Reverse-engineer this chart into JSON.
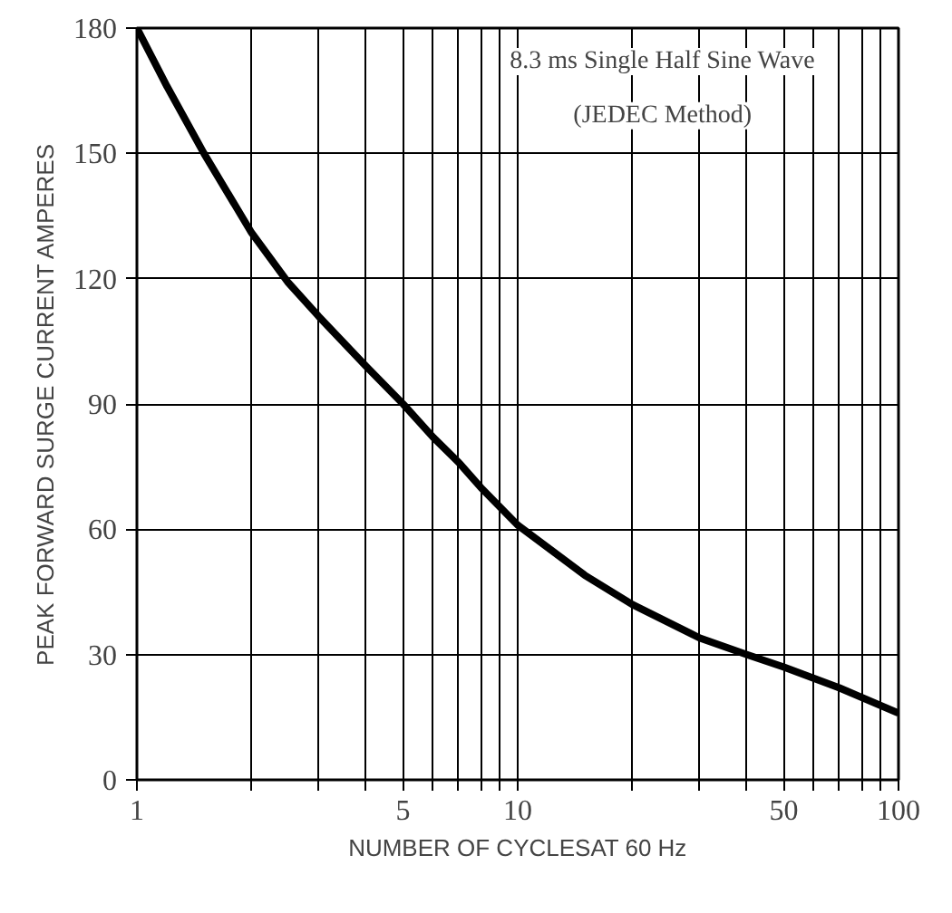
{
  "chart_data": {
    "type": "line",
    "xlabel": "NUMBER OF CYCLESAT 60 Hz",
    "ylabel": "PEAK FORWARD SURGE CURRENT AMPERES",
    "annotations": [
      "8.3 ms Single Half Sine Wave",
      "(JEDEC Method)"
    ],
    "log": "x",
    "grid": true,
    "marker": "none",
    "line_style": "solid",
    "xlim": [
      1,
      100
    ],
    "ylim": [
      0,
      180
    ],
    "xticks": [
      1,
      {
        "value": 2,
        "label": null
      },
      {
        "value": 3,
        "label": null
      },
      {
        "value": 4,
        "label": null
      },
      5,
      {
        "value": 6,
        "label": null
      },
      {
        "value": 7,
        "label": null
      },
      {
        "value": 8,
        "label": null
      },
      {
        "value": 9,
        "label": null
      },
      10,
      {
        "value": 20,
        "label": null
      },
      {
        "value": 30,
        "label": null
      },
      {
        "value": 40,
        "label": null
      },
      50,
      {
        "value": 60,
        "label": null
      },
      {
        "value": 70,
        "label": null
      },
      {
        "value": 80,
        "label": null
      },
      {
        "value": 90,
        "label": null
      },
      100
    ],
    "yticks": [
      0,
      30,
      60,
      90,
      120,
      150,
      180
    ],
    "x": [
      1,
      1.2,
      1.5,
      2,
      2.5,
      3,
      4,
      5,
      6,
      7,
      8,
      10,
      15,
      20,
      30,
      40,
      50,
      70,
      100
    ],
    "series": [
      {
        "color": "#000000",
        "values": [
          180,
          166,
          150,
          131,
          119,
          111,
          99,
          90,
          82,
          76,
          70,
          61,
          49,
          42,
          34,
          30,
          27,
          22,
          16
        ]
      }
    ]
  }
}
